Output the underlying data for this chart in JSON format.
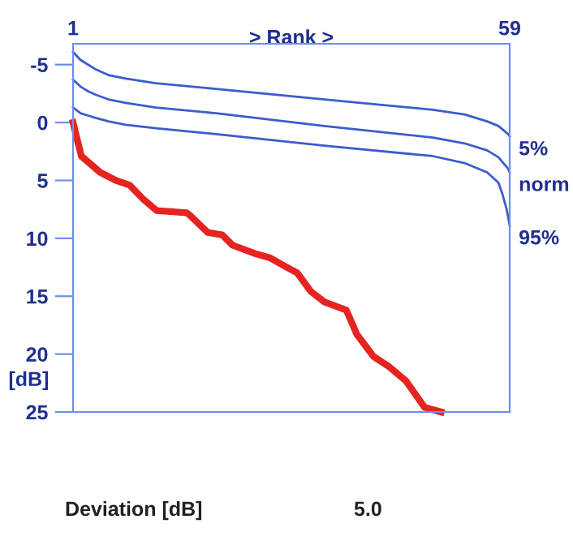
{
  "chart_data": {
    "type": "line",
    "xlabel": "> Rank >",
    "ylabel": "[dB]",
    "xlim": [
      1,
      59
    ],
    "xticks": [
      1,
      59
    ],
    "ylim": [
      25,
      -6.8
    ],
    "yticks": [
      -5,
      0,
      5,
      10,
      15,
      20,
      25
    ],
    "grid": false,
    "marker": "none",
    "line_style": "solid",
    "series": [
      {
        "name": "5%",
        "color": "#3d5ccc",
        "x": [
          1,
          2,
          3,
          4,
          5.7,
          8,
          12,
          20,
          34.4,
          48.8,
          53,
          56,
          57.5,
          58.8,
          59
        ],
        "values": [
          -6.1,
          -5.4,
          -5.0,
          -4.6,
          -4.1,
          -3.8,
          -3.4,
          -2.9,
          -2.0,
          -1.1,
          -0.7,
          -0.1,
          0.3,
          1.0,
          1.2
        ]
      },
      {
        "name": "norm",
        "color": "#3d5ccc",
        "x": [
          1,
          2,
          3,
          4,
          5.7,
          8,
          12,
          20,
          34.4,
          48.8,
          53,
          56,
          57.5,
          58.8,
          59
        ],
        "values": [
          -3.7,
          -3.1,
          -2.7,
          -2.4,
          -2.0,
          -1.7,
          -1.3,
          -0.8,
          0.3,
          1.3,
          1.8,
          2.4,
          3.0,
          4.0,
          4.3
        ]
      },
      {
        "name": "95%",
        "color": "#3d5ccc",
        "x": [
          1,
          2,
          3,
          4,
          5.7,
          8,
          12,
          20,
          34.4,
          48.8,
          53,
          56,
          57.5,
          58,
          58.6,
          59
        ],
        "values": [
          -1.3,
          -0.8,
          -0.6,
          -0.4,
          -0.1,
          0.2,
          0.5,
          1.0,
          2.0,
          2.9,
          3.5,
          4.3,
          5.2,
          6.1,
          7.5,
          8.9
        ]
      },
      {
        "color": "#e52421",
        "x": [
          1,
          2.1,
          4.6,
          6.7,
          8.5,
          10.3,
          12.1,
          16.1,
          16.5,
          18.9,
          20.8,
          22.2,
          25.1,
          27.2,
          29.4,
          30.8,
          32.6,
          34.4,
          37.3,
          38.7,
          40.9,
          43.0,
          45.2,
          47.7,
          49.9
        ],
        "values": [
          0,
          2.9,
          4.3,
          5.0,
          5.4,
          6.6,
          7.6,
          7.8,
          8.0,
          9.5,
          9.7,
          10.6,
          11.3,
          11.7,
          12.5,
          13.0,
          14.6,
          15.5,
          16.2,
          18.3,
          20.2,
          21.1,
          22.3,
          24.6,
          25
        ]
      }
    ],
    "annotations": [
      "Deviation [dB]",
      "5.0"
    ]
  }
}
